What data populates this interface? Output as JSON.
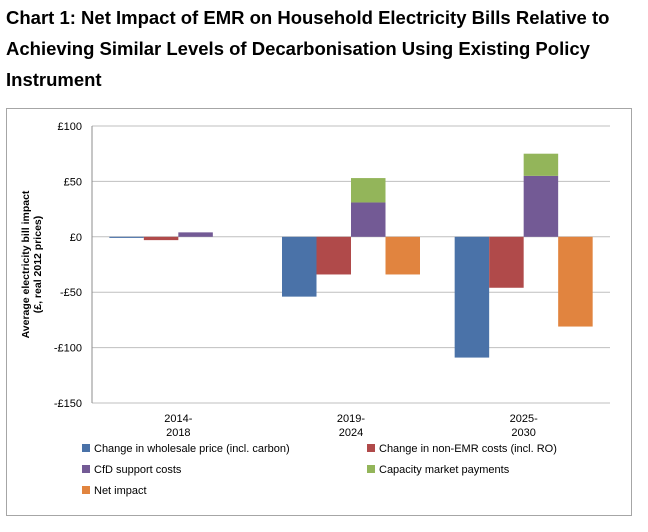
{
  "chart_data": {
    "type": "bar",
    "stacked_overlay": true,
    "title": "Chart 1: Net Impact of EMR on Household Electricity Bills Relative to Achieving Similar Levels of Decarbonisation Using Existing Policy Instrument",
    "ylabel_lines": [
      "Average electricity bill impact",
      "(£, real 2012 prices)"
    ],
    "categories": [
      [
        "2014-",
        "2018"
      ],
      [
        "2019-",
        "2024"
      ],
      [
        "2025-",
        "2030"
      ]
    ],
    "ylim": [
      -150,
      100
    ],
    "yticks": [
      100,
      50,
      0,
      -50,
      -100,
      -150
    ],
    "ytick_labels": [
      "£100",
      "£50",
      "£0",
      "-£50",
      "-£100",
      "-£150"
    ],
    "grid": true,
    "legend_position": "bottom",
    "series": [
      {
        "name": "Change in wholesale price (incl. carbon)",
        "color": "#4a72a8",
        "values": [
          -1,
          -54,
          -109
        ]
      },
      {
        "name": "Change in non-EMR costs (incl. RO)",
        "color": "#b04a4a",
        "values": [
          -3,
          -34,
          -46
        ]
      },
      {
        "name": "CfD support costs",
        "color": "#735a95",
        "values": [
          4,
          31,
          55
        ]
      },
      {
        "name": "Capacity market payments",
        "color": "#93b55a",
        "values": [
          0,
          22,
          20
        ],
        "stacked_on": "CfD support costs"
      },
      {
        "name": "Net impact",
        "color": "#e1843f",
        "values": [
          0,
          -34,
          -81
        ]
      }
    ]
  }
}
